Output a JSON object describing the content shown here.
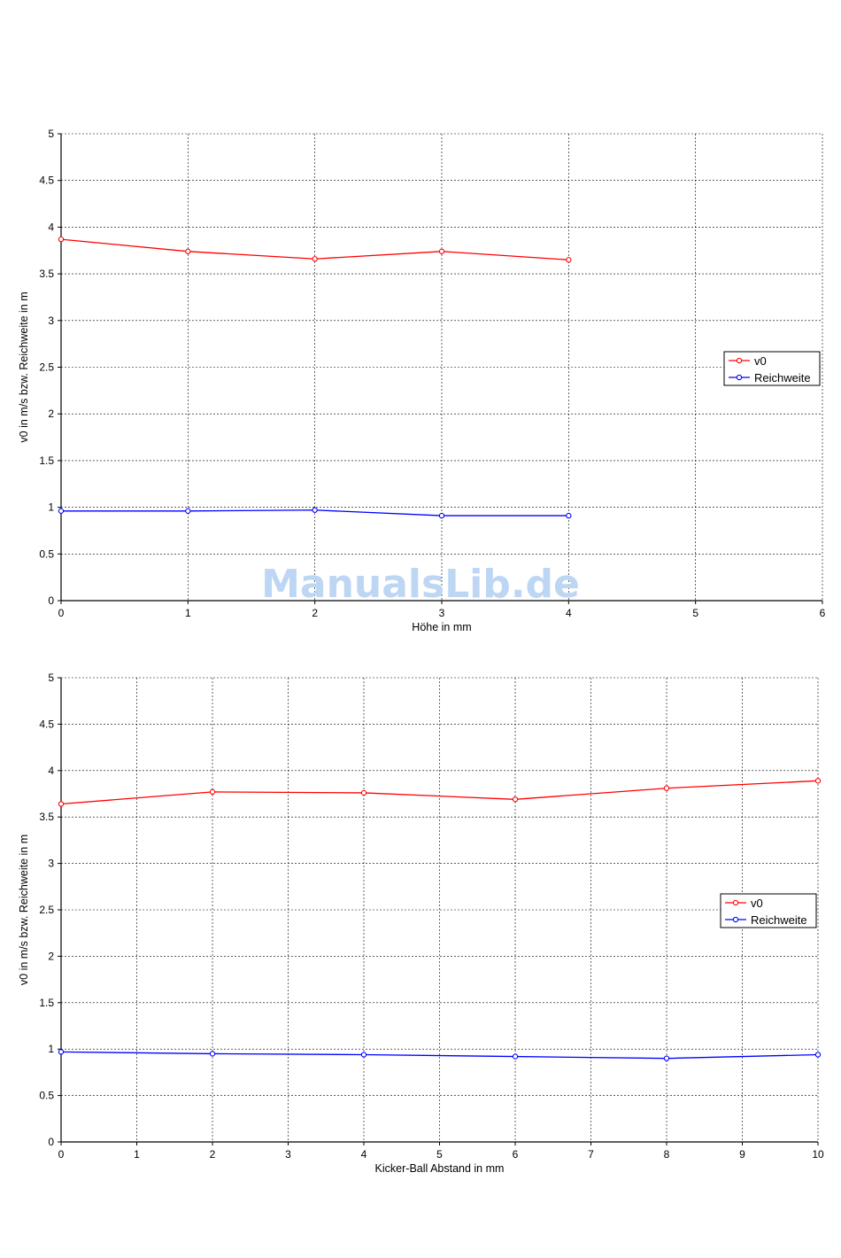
{
  "watermark": "ManualsLib.de",
  "colors": {
    "v0": "#ff0000",
    "reichweite": "#0000ff",
    "grid": "#000000",
    "watermark": "#bcd6f3"
  },
  "chart_data": [
    {
      "type": "line",
      "title": "",
      "xlabel": "Höhe in mm",
      "ylabel": "v0 in m/s bzw. Reichweite in m",
      "xlim": [
        0,
        6
      ],
      "ylim": [
        0,
        5
      ],
      "xticks": [
        "0",
        "1",
        "2",
        "3",
        "4",
        "5",
        "6"
      ],
      "yticks": [
        "0",
        "0.5",
        "1",
        "1.5",
        "2",
        "2.5",
        "3",
        "3.5",
        "4",
        "4.5",
        "5"
      ],
      "grid": true,
      "legend_position": "right",
      "x": [
        0,
        1,
        2,
        3,
        4
      ],
      "series": [
        {
          "name": "v0",
          "color": "#ff0000",
          "values": [
            3.87,
            3.74,
            3.66,
            3.74,
            3.65
          ]
        },
        {
          "name": "Reichweite",
          "color": "#0000ff",
          "values": [
            0.96,
            0.96,
            0.97,
            0.91,
            0.91
          ]
        }
      ]
    },
    {
      "type": "line",
      "title": "",
      "xlabel": "Kicker-Ball Abstand in mm",
      "ylabel": "v0 in m/s bzw. Reichweite in m",
      "xlim": [
        0,
        10
      ],
      "ylim": [
        0,
        5
      ],
      "xticks": [
        "0",
        "1",
        "2",
        "3",
        "4",
        "5",
        "6",
        "7",
        "8",
        "9",
        "10"
      ],
      "yticks": [
        "0",
        "0.5",
        "1",
        "1.5",
        "2",
        "2.5",
        "3",
        "3.5",
        "4",
        "4.5",
        "5"
      ],
      "grid": true,
      "legend_position": "right",
      "x": [
        0,
        2,
        4,
        6,
        8,
        10
      ],
      "series": [
        {
          "name": "v0",
          "color": "#ff0000",
          "values": [
            3.64,
            3.77,
            3.76,
            3.69,
            3.81,
            3.89
          ]
        },
        {
          "name": "Reichweite",
          "color": "#0000ff",
          "values": [
            0.97,
            0.95,
            0.94,
            0.92,
            0.9,
            0.94
          ]
        }
      ]
    }
  ]
}
